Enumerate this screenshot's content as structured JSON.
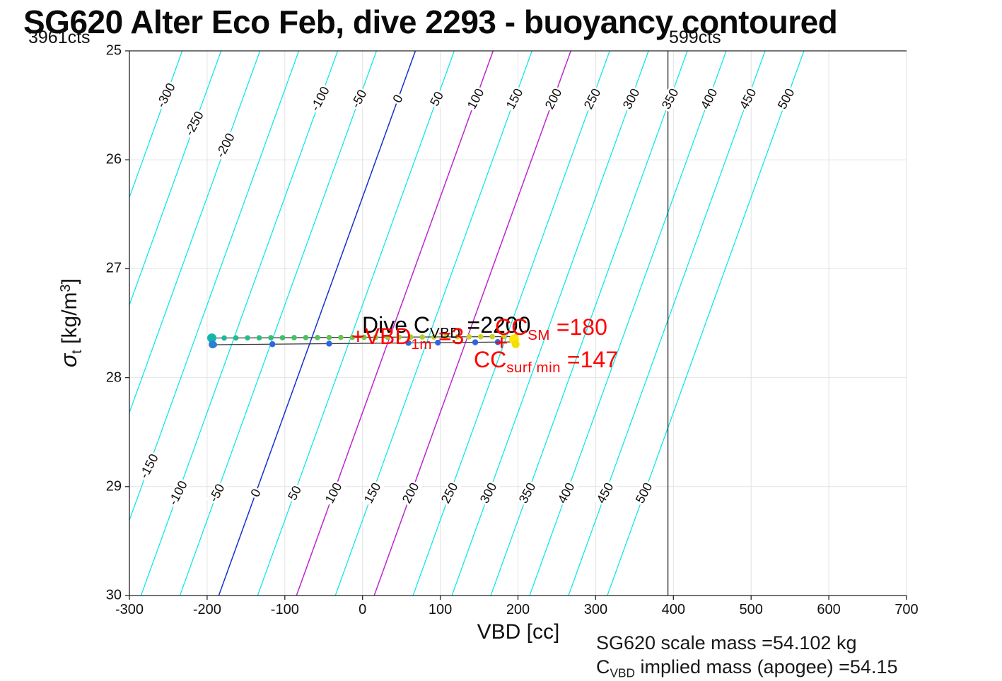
{
  "title": "SG620 Alter Eco Feb, dive 2293 - buoyancy contoured",
  "counts": {
    "left": "3961cts",
    "right": "599cts"
  },
  "annotations": {
    "dive_c": {
      "prefix": "Dive C",
      "sub": "VBD",
      "suffix": " =2200"
    },
    "vbd_1m": {
      "prefix": "+VBD",
      "sub": "1m",
      "suffix": " =3"
    },
    "cc_sm": {
      "prefix": "CC",
      "sub": "SM",
      "suffix": " =180"
    },
    "cc_surf": {
      "prefix": "CC",
      "sub": "surf min",
      "suffix": " =147"
    }
  },
  "axes": {
    "xlabel": "VBD [cc]",
    "ylabel": {
      "sigma": "σ",
      "sub": "t",
      "mid": " [kg/m",
      "sup": "3",
      "end": "]"
    }
  },
  "footer": {
    "line1": "SG620 scale mass =54.102 kg",
    "line2_prefix": "C",
    "line2_sub": "VBD",
    "line2_rest": " implied mass (apogee) =54.15"
  },
  "chart_data": {
    "type": "scatter",
    "title": "SG620 Alter Eco Feb, dive 2293 - buoyancy contoured",
    "xlabel": "VBD [cc]",
    "ylabel": "sigma_t [kg/m^3]",
    "xlim": [
      -300,
      700
    ],
    "ylim": [
      25,
      30
    ],
    "y_axis_inverted": true,
    "xticks": [
      -300,
      -200,
      -100,
      0,
      100,
      200,
      300,
      400,
      500,
      600,
      700
    ],
    "yticks": [
      25,
      26,
      27,
      28,
      29,
      30
    ],
    "grid": true,
    "colors": {
      "contour": "#00e6e6",
      "contour_zero": "#1530cf",
      "contour_magenta": "#c024cf",
      "grid": "#e2e2e2",
      "axis": "#222222",
      "series_line": "#3c3c3c",
      "lower_dots": "#2e66e0",
      "annotation_red": "#ff0000"
    },
    "contours": {
      "values": [
        -300,
        -250,
        -200,
        -150,
        -100,
        -50,
        0,
        50,
        100,
        150,
        200,
        250,
        300,
        350,
        400,
        450,
        500
      ],
      "special_colors": {
        "0": "zero",
        "100": "magenta",
        "200": "magenta"
      },
      "model": {
        "vbd_offset_at_sigma25": 68,
        "cc_per_sigma": -50.6
      },
      "upper_labels": [
        {
          "v": -300,
          "sigma": 25.41
        },
        {
          "v": -250,
          "sigma": 25.67
        },
        {
          "v": -200,
          "sigma": 25.87
        },
        {
          "v": -100,
          "sigma": 25.44
        },
        {
          "v": -50,
          "sigma": 25.44
        },
        {
          "v": 0,
          "sigma": 25.44
        },
        {
          "v": 50,
          "sigma": 25.44
        },
        {
          "v": 100,
          "sigma": 25.44
        },
        {
          "v": 150,
          "sigma": 25.44
        },
        {
          "v": 200,
          "sigma": 25.44
        },
        {
          "v": 250,
          "sigma": 25.44
        },
        {
          "v": 300,
          "sigma": 25.44
        },
        {
          "v": 350,
          "sigma": 25.44
        },
        {
          "v": 400,
          "sigma": 25.44
        },
        {
          "v": 450,
          "sigma": 25.44
        },
        {
          "v": 500,
          "sigma": 25.44
        }
      ],
      "lower_labels": [
        {
          "v": -150,
          "sigma": 28.81
        },
        {
          "v": -100,
          "sigma": 29.06
        },
        {
          "v": -50,
          "sigma": 29.06
        },
        {
          "v": 0,
          "sigma": 29.06
        },
        {
          "v": 50,
          "sigma": 29.06
        },
        {
          "v": 100,
          "sigma": 29.06
        },
        {
          "v": 150,
          "sigma": 29.06
        },
        {
          "v": 200,
          "sigma": 29.06
        },
        {
          "v": 250,
          "sigma": 29.06
        },
        {
          "v": 300,
          "sigma": 29.06
        },
        {
          "v": 350,
          "sigma": 29.06
        },
        {
          "v": 400,
          "sigma": 29.06
        },
        {
          "v": 450,
          "sigma": 29.06
        },
        {
          "v": 500,
          "sigma": 29.06
        }
      ]
    },
    "vertical_line": {
      "x": 393,
      "label": "599cts"
    },
    "series": {
      "upper": {
        "name": "dive-profile-colored-by-time",
        "sigma_start": 27.636,
        "sigma_end": 27.623,
        "vbd": [
          -193,
          -178,
          -163,
          -148,
          -133,
          -118,
          -103,
          -88,
          -73,
          -58,
          -43,
          -28,
          -13,
          2,
          17,
          32,
          47,
          62,
          77,
          92,
          107,
          122,
          137,
          152,
          167,
          182,
          197
        ],
        "color_stops": [
          "#1fb5a2",
          "#33bf72",
          "#62c54d",
          "#9cca35",
          "#cdd229",
          "#c9cf26"
        ]
      },
      "lower": {
        "name": "climb-profile",
        "sigma_start": 27.698,
        "sigma_end": 27.672,
        "vbd_line": [
          -194,
          197
        ],
        "dot_vbd": [
          -191,
          -116,
          -43,
          59,
          97,
          145,
          174
        ],
        "dot_color": "#2e66e0"
      }
    },
    "markers": [
      {
        "shape": "circle",
        "vbd": -194,
        "sigma": 27.636,
        "r": 6.5,
        "color": "#17b4ae",
        "name": "dive-start-marker"
      },
      {
        "shape": "circle",
        "vbd": -193,
        "sigma": 27.695,
        "r": 5.5,
        "color": "#2f7fd0",
        "name": "climb-end-marker"
      },
      {
        "shape": "circle",
        "vbd": 195,
        "sigma": 27.649,
        "r": 7,
        "color": "#ffe40a",
        "name": "apogee-marker-upper"
      },
      {
        "shape": "circle",
        "vbd": 197,
        "sigma": 27.694,
        "r": 5.5,
        "color": "#f2de00",
        "name": "apogee-marker-lower"
      },
      {
        "shape": "plus",
        "vbd": 179,
        "sigma": 27.678,
        "size": 15,
        "color": "#ff0000",
        "name": "cc-sm-marker"
      }
    ]
  }
}
